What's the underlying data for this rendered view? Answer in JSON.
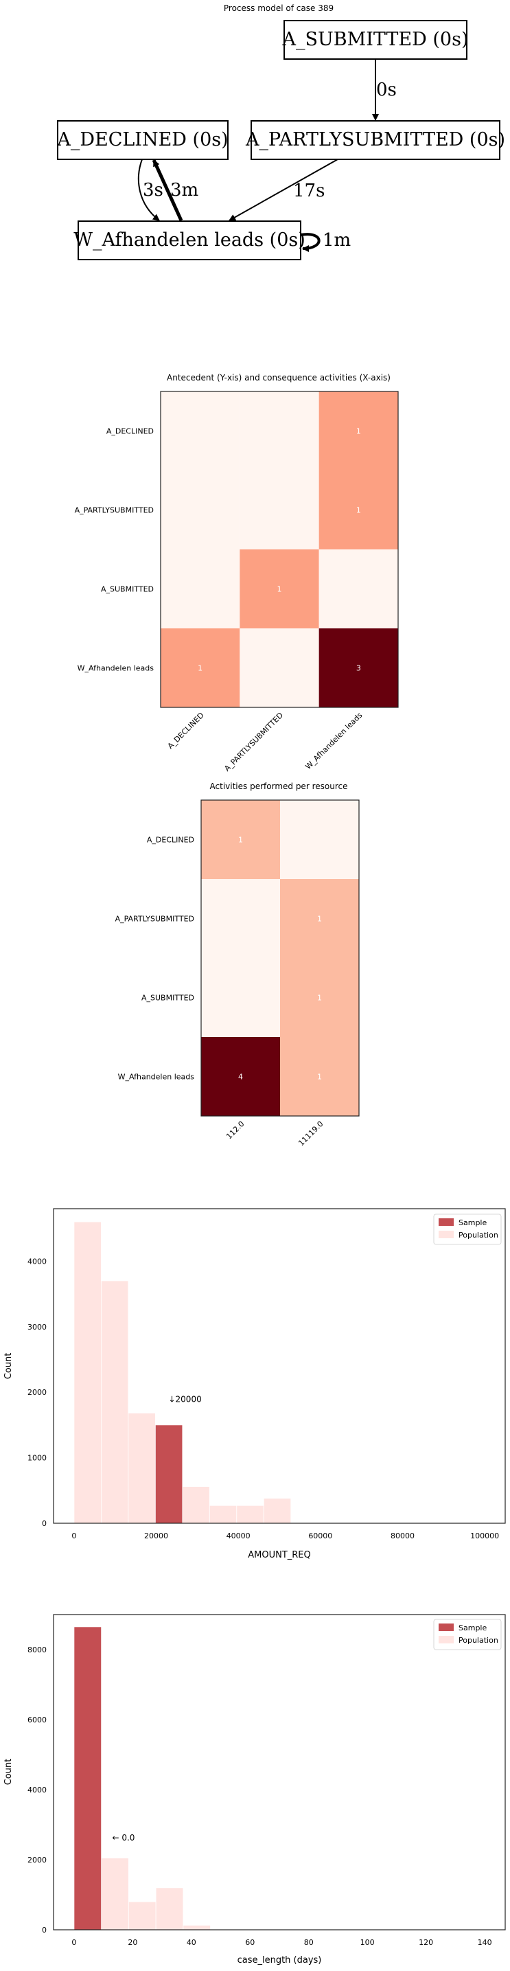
{
  "process_model": {
    "title": "Process model of case 389",
    "nodes": {
      "a_submitted": "A_SUBMITTED (0s)",
      "a_declined": "A_DECLINED (0s)",
      "a_partlysubmitted": "A_PARTLYSUBMITTED (0s)",
      "w_afhandelen": "W_Afhandelen leads (0s)"
    },
    "edges": {
      "submitted_to_partly": "0s",
      "declined_to_w": "3s",
      "w_to_declined": "3m",
      "partly_to_w": "17s",
      "w_self_loop": "1m"
    }
  },
  "chart_data": [
    {
      "type": "heatmap",
      "title": "Antecedent (Y-xis) and consequence activities (X-axis)",
      "x_labels": [
        "A_DECLINED",
        "A_PARTLYSUBMITTED",
        "W_Afhandelen leads"
      ],
      "y_labels": [
        "A_DECLINED",
        "A_PARTLYSUBMITTED",
        "A_SUBMITTED",
        "W_Afhandelen leads"
      ],
      "values": [
        [
          0,
          0,
          1
        ],
        [
          0,
          0,
          1
        ],
        [
          0,
          1,
          0
        ],
        [
          1,
          0,
          3
        ]
      ],
      "colormap": [
        "#fff5f0",
        "#67000d"
      ]
    },
    {
      "type": "heatmap",
      "title": "Activities performed per resource",
      "x_labels": [
        "112.0",
        "11119.0"
      ],
      "y_labels": [
        "A_DECLINED",
        "A_PARTLYSUBMITTED",
        "A_SUBMITTED",
        "W_Afhandelen leads"
      ],
      "values": [
        [
          1,
          0
        ],
        [
          0,
          1
        ],
        [
          0,
          1
        ],
        [
          4,
          1
        ]
      ],
      "colormap": [
        "#fff5f0",
        "#67000d"
      ]
    },
    {
      "type": "bar",
      "xlabel": "AMOUNT_REQ",
      "ylabel": "Count",
      "xlim": [
        -5000,
        105000
      ],
      "ylim": [
        0,
        4800
      ],
      "xticks": [
        0,
        20000,
        40000,
        60000,
        80000,
        100000
      ],
      "yticks": [
        0,
        1000,
        2000,
        3000,
        4000
      ],
      "bin_width": 6600,
      "series": [
        {
          "name": "Population",
          "bin_starts": [
            0,
            6600,
            13200,
            19800,
            26400,
            33000,
            39600,
            46200
          ],
          "values": [
            4600,
            3700,
            1680,
            1480,
            560,
            270,
            270,
            380
          ]
        },
        {
          "name": "Sample",
          "bin_starts": [
            19800
          ],
          "values": [
            1500
          ]
        }
      ],
      "annotation": {
        "text": "↓20000",
        "x": 23000,
        "y": 1850
      },
      "legend": "top-right",
      "colors": {
        "Sample": "#c44e52",
        "Population": "#ffe4e1"
      }
    },
    {
      "type": "bar",
      "xlabel": "case_length (days)",
      "ylabel": "Count",
      "xlim": [
        -7,
        147
      ],
      "ylim": [
        0,
        9000
      ],
      "xticks": [
        0,
        20,
        40,
        60,
        80,
        100,
        120,
        140
      ],
      "yticks": [
        0,
        2000,
        4000,
        6000,
        8000
      ],
      "bin_width": 9.3,
      "series": [
        {
          "name": "Population",
          "bin_starts": [
            0,
            9.3,
            18.6,
            27.9,
            37.2
          ],
          "values": [
            8650,
            2050,
            800,
            1200,
            130
          ]
        },
        {
          "name": "Sample",
          "bin_starts": [
            0
          ],
          "values": [
            8650
          ]
        }
      ],
      "annotation": {
        "text": "← 0.0",
        "x": 13,
        "y": 2550
      },
      "legend": "top-right",
      "colors": {
        "Sample": "#c44e52",
        "Population": "#ffe4e1"
      }
    }
  ]
}
